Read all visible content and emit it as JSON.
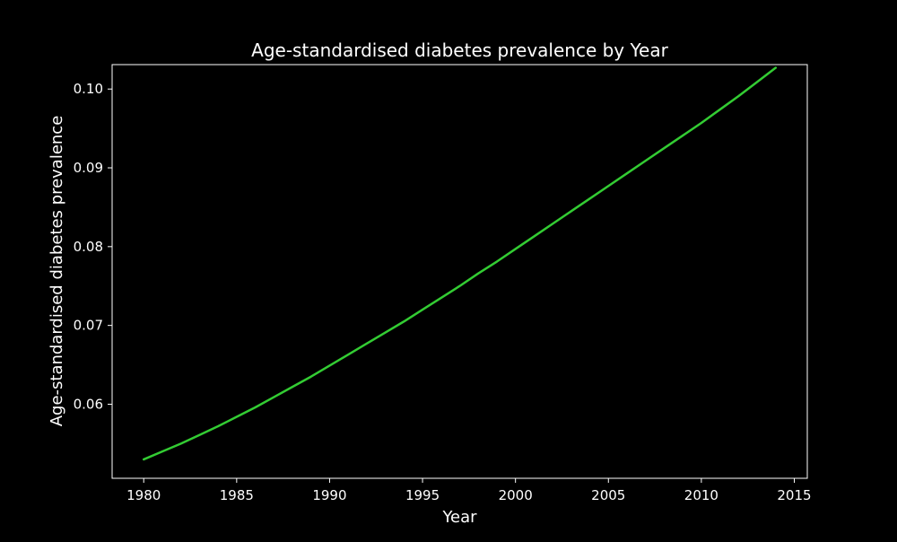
{
  "chart_data": {
    "type": "line",
    "title": "Age-standardised diabetes prevalence by Year",
    "xlabel": "Year",
    "ylabel": "Age-standardised diabetes prevalence",
    "xlim": [
      1978.3,
      2015.7
    ],
    "ylim": [
      0.0506,
      0.1031
    ],
    "x_ticks": [
      1980,
      1985,
      1990,
      1995,
      2000,
      2005,
      2010,
      2015
    ],
    "x_tick_labels": [
      "1980",
      "1985",
      "1990",
      "1995",
      "2000",
      "2005",
      "2010",
      "2015"
    ],
    "y_ticks": [
      0.06,
      0.07,
      0.08,
      0.09,
      0.1
    ],
    "y_tick_labels": [
      "0.06",
      "0.07",
      "0.08",
      "0.09",
      "0.10"
    ],
    "grid": false,
    "background_color": "#000000",
    "foreground_color": "#ffffff",
    "series": [
      {
        "color": "#33cc33",
        "x": [
          1980,
          1981,
          1982,
          1983,
          1984,
          1985,
          1986,
          1987,
          1988,
          1989,
          1990,
          1991,
          1992,
          1993,
          1994,
          1995,
          1996,
          1997,
          1998,
          1999,
          2000,
          2001,
          2002,
          2003,
          2004,
          2005,
          2006,
          2007,
          2008,
          2009,
          2010,
          2011,
          2012,
          2013,
          2014
        ],
        "values": [
          0.053,
          0.054,
          0.055,
          0.0561,
          0.0572,
          0.0584,
          0.0596,
          0.0609,
          0.0622,
          0.0635,
          0.0649,
          0.0663,
          0.0677,
          0.0691,
          0.0705,
          0.072,
          0.0735,
          0.075,
          0.0766,
          0.0781,
          0.0797,
          0.0813,
          0.0829,
          0.0845,
          0.0861,
          0.0877,
          0.0893,
          0.0909,
          0.0925,
          0.0941,
          0.0957,
          0.0974,
          0.0991,
          0.1009,
          0.1027
        ]
      }
    ]
  }
}
